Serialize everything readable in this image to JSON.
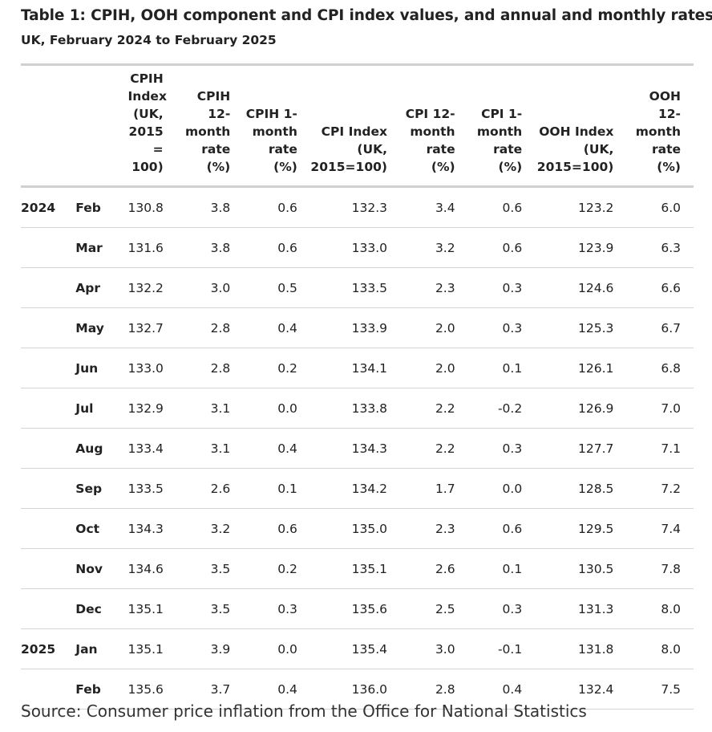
{
  "title": "Table 1: CPIH, OOH component and CPI index values, and annual and monthly rates",
  "subtitle": "UK, February 2024 to February 2025",
  "columns": [
    [
      "CPIH",
      "Index",
      "(UK,",
      "2015 =",
      "100)"
    ],
    [
      "CPIH",
      "12-",
      "month",
      "rate",
      "(%)"
    ],
    [
      "CPIH 1-",
      "month",
      "rate",
      "(%)"
    ],
    [
      "CPI Index",
      "(UK,",
      "2015=100)"
    ],
    [
      "CPI 12-",
      "month",
      "rate",
      "(%)"
    ],
    [
      "CPI 1-",
      "month",
      "rate",
      "(%)"
    ],
    [
      "OOH Index",
      "(UK,",
      "2015=100)"
    ],
    [
      "OOH",
      "12-",
      "month",
      "rate",
      "(%)"
    ]
  ],
  "rows": [
    {
      "year": "2024",
      "month": "Feb",
      "values": [
        "130.8",
        "3.8",
        "0.6",
        "132.3",
        "3.4",
        "0.6",
        "123.2",
        "6.0"
      ]
    },
    {
      "year": "",
      "month": "Mar",
      "values": [
        "131.6",
        "3.8",
        "0.6",
        "133.0",
        "3.2",
        "0.6",
        "123.9",
        "6.3"
      ]
    },
    {
      "year": "",
      "month": "Apr",
      "values": [
        "132.2",
        "3.0",
        "0.5",
        "133.5",
        "2.3",
        "0.3",
        "124.6",
        "6.6"
      ]
    },
    {
      "year": "",
      "month": "May",
      "values": [
        "132.7",
        "2.8",
        "0.4",
        "133.9",
        "2.0",
        "0.3",
        "125.3",
        "6.7"
      ]
    },
    {
      "year": "",
      "month": "Jun",
      "values": [
        "133.0",
        "2.8",
        "0.2",
        "134.1",
        "2.0",
        "0.1",
        "126.1",
        "6.8"
      ]
    },
    {
      "year": "",
      "month": "Jul",
      "values": [
        "132.9",
        "3.1",
        "0.0",
        "133.8",
        "2.2",
        "-0.2",
        "126.9",
        "7.0"
      ]
    },
    {
      "year": "",
      "month": "Aug",
      "values": [
        "133.4",
        "3.1",
        "0.4",
        "134.3",
        "2.2",
        "0.3",
        "127.7",
        "7.1"
      ]
    },
    {
      "year": "",
      "month": "Sep",
      "values": [
        "133.5",
        "2.6",
        "0.1",
        "134.2",
        "1.7",
        "0.0",
        "128.5",
        "7.2"
      ]
    },
    {
      "year": "",
      "month": "Oct",
      "values": [
        "134.3",
        "3.2",
        "0.6",
        "135.0",
        "2.3",
        "0.6",
        "129.5",
        "7.4"
      ]
    },
    {
      "year": "",
      "month": "Nov",
      "values": [
        "134.6",
        "3.5",
        "0.2",
        "135.1",
        "2.6",
        "0.1",
        "130.5",
        "7.8"
      ]
    },
    {
      "year": "",
      "month": "Dec",
      "values": [
        "135.1",
        "3.5",
        "0.3",
        "135.6",
        "2.5",
        "0.3",
        "131.3",
        "8.0"
      ]
    },
    {
      "year": "2025",
      "month": "Jan",
      "values": [
        "135.1",
        "3.9",
        "0.0",
        "135.4",
        "3.0",
        "-0.1",
        "131.8",
        "8.0"
      ]
    },
    {
      "year": "",
      "month": "Feb",
      "values": [
        "135.6",
        "3.7",
        "0.4",
        "136.0",
        "2.8",
        "0.4",
        "132.4",
        "7.5"
      ]
    }
  ],
  "source": "Source: Consumer price inflation from the Office for National Statistics"
}
